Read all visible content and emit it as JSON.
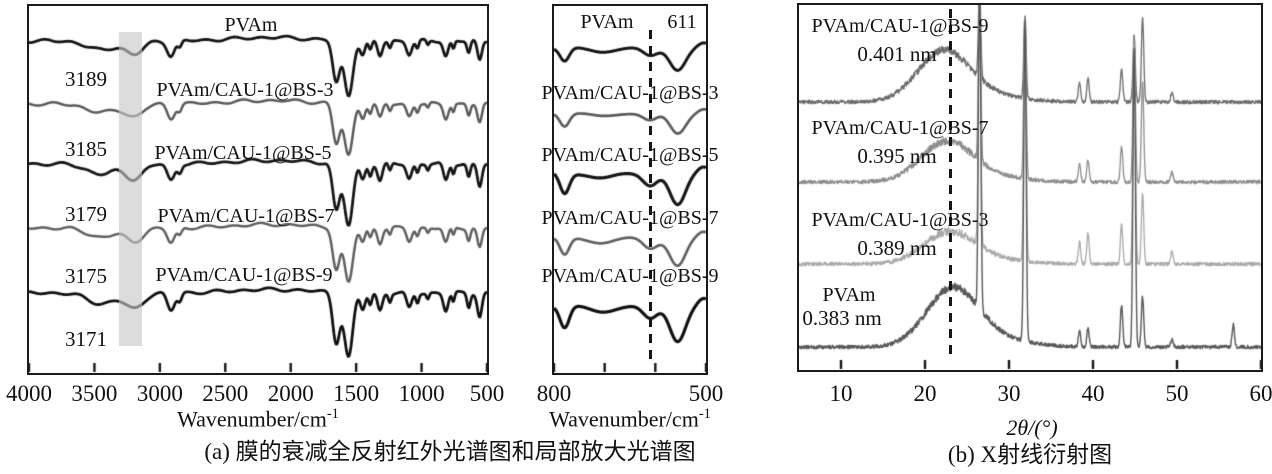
{
  "figure": {
    "panel_a": {
      "caption": "(a) 膜的衰减全反射红外光谱图和局部放大光谱图"
    },
    "panel_b": {
      "caption": "(b) X射线衍射图"
    }
  },
  "chart_data": [
    {
      "id": "ftir_full",
      "type": "line",
      "title": "",
      "x_axis": {
        "label_base": "Wavenumber/cm",
        "label_exp": "-1",
        "range": [
          4000,
          500
        ],
        "ticks": [
          4000,
          3500,
          3000,
          2500,
          2000,
          1500,
          1000,
          500
        ]
      },
      "y_axis": {
        "label": "",
        "visible": false
      },
      "grid": false,
      "highlight_band": {
        "from": 3310,
        "to": 3135,
        "color": "#c6c6c6"
      },
      "absorption_bands": [
        [
          9,
          3450,
          150
        ],
        [
          13,
          3195,
          95
        ],
        [
          15,
          2915,
          40
        ],
        [
          7,
          2848,
          22
        ],
        [
          42,
          1652,
          38
        ],
        [
          55,
          1558,
          46
        ],
        [
          14,
          1450,
          26
        ],
        [
          10,
          1392,
          18
        ],
        [
          15,
          1318,
          26
        ],
        [
          7,
          1242,
          16
        ],
        [
          13,
          1095,
          28
        ],
        [
          8,
          1032,
          16
        ],
        [
          5,
          952,
          14
        ],
        [
          15,
          815,
          26
        ],
        [
          8,
          757,
          14
        ],
        [
          12,
          640,
          18
        ],
        [
          20,
          556,
          24
        ]
      ],
      "series": [
        {
          "label": "PVAm",
          "annotation": "3189",
          "color": "#141414",
          "depth_scale": 1.0,
          "line_width": 2.8
        },
        {
          "label": "PVAm/CAU-1@BS-3",
          "annotation": "3185",
          "color": "#5a5a5a",
          "depth_scale": 0.95,
          "line_width": 2.5
        },
        {
          "label": "PVAm/CAU-1@BS-5",
          "annotation": "3179",
          "color": "#161616",
          "depth_scale": 1.12,
          "line_width": 2.8
        },
        {
          "label": "PVAm/CAU-1@BS-7",
          "annotation": "3175",
          "color": "#606060",
          "depth_scale": 1.0,
          "line_width": 2.5
        },
        {
          "label": "PVAm/CAU-1@BS-9",
          "annotation": "3171",
          "color": "#101010",
          "depth_scale": 1.18,
          "line_width": 2.8
        }
      ]
    },
    {
      "id": "ftir_inset",
      "type": "line",
      "x_axis": {
        "label_base": "Wavenumber/cm",
        "label_exp": "-1",
        "range": [
          800,
          500
        ],
        "ticks": [
          800,
          700,
          600,
          500
        ],
        "labeled_ticks": [
          800,
          500
        ]
      },
      "marker": {
        "value": 611,
        "label": "611"
      },
      "absorption_bands": [
        [
          15,
          779,
          13
        ],
        [
          4,
          706,
          34
        ],
        [
          9,
          610,
          20
        ],
        [
          24,
          556,
          22
        ],
        [
          -5,
          505,
          16
        ]
      ],
      "series": [
        {
          "label": "PVAm",
          "color": "#141414",
          "depth_scale": 0.9,
          "line_width": 3.0
        },
        {
          "label": "PVAm/CAU-1@BS-3",
          "color": "#5a5a5a",
          "depth_scale": 0.85,
          "line_width": 2.7
        },
        {
          "label": "PVAm/CAU-1@BS-5",
          "color": "#161616",
          "depth_scale": 1.35,
          "line_width": 3.2
        },
        {
          "label": "PVAm/CAU-1@BS-7",
          "color": "#606060",
          "depth_scale": 1.15,
          "line_width": 2.7
        },
        {
          "label": "PVAm/CAU-1@BS-9",
          "color": "#101010",
          "depth_scale": 1.45,
          "line_width": 3.2
        }
      ]
    },
    {
      "id": "xrd",
      "type": "line",
      "x_axis": {
        "label": "2θ/(°)",
        "range": [
          5,
          60
        ],
        "ticks": [
          10,
          20,
          30,
          40,
          50,
          60
        ]
      },
      "marker": {
        "value": 23.0
      },
      "sharp_peaks": [
        {
          "pos": 26.5,
          "tips": [
            8,
            8,
            10,
            10
          ]
        },
        {
          "pos": 31.9,
          "tips": [
            14,
            14,
            16,
            18
          ]
        },
        {
          "pos": 38.4,
          "amps": [
            20,
            18,
            22,
            16
          ]
        },
        {
          "pos": 39.4,
          "amps": [
            24,
            22,
            30,
            18
          ]
        },
        {
          "pos": 43.4,
          "amps": [
            34,
            36,
            40,
            42
          ]
        },
        {
          "pos": 44.9,
          "tips": [
            30,
            30,
            40,
            40
          ]
        },
        {
          "pos": 45.9,
          "amps": [
            85,
            100,
            70,
            50
          ]
        },
        {
          "pos": 49.4,
          "amps": [
            10,
            10,
            14,
            8
          ]
        },
        {
          "pos": 56.7,
          "amps": [
            0,
            0,
            0,
            22
          ]
        }
      ],
      "series": [
        {
          "label": "PVAm/CAU-1@BS-9",
          "annotation": "0.401 nm",
          "d_spacing_nm": 0.401,
          "hump_center": 22.15,
          "hump_amp": 48,
          "color": "#6b6b6b",
          "line_width": 1.3
        },
        {
          "label": "PVAm/CAU-1@BS-7",
          "annotation": "0.395 nm",
          "d_spacing_nm": 0.395,
          "hump_center": 22.5,
          "hump_amp": 38,
          "color": "#8d8d8d",
          "line_width": 1.3
        },
        {
          "label": "PVAm/CAU-1@BS-3",
          "annotation": "0.389 nm",
          "d_spacing_nm": 0.389,
          "hump_center": 22.85,
          "hump_amp": 30,
          "color": "#a9a9a9",
          "line_width": 1.3
        },
        {
          "label": "PVAm",
          "annotation": "0.383 nm",
          "d_spacing_nm": 0.383,
          "hump_center": 23.2,
          "hump_amp": 55,
          "color": "#585858",
          "line_width": 1.4
        }
      ]
    }
  ]
}
